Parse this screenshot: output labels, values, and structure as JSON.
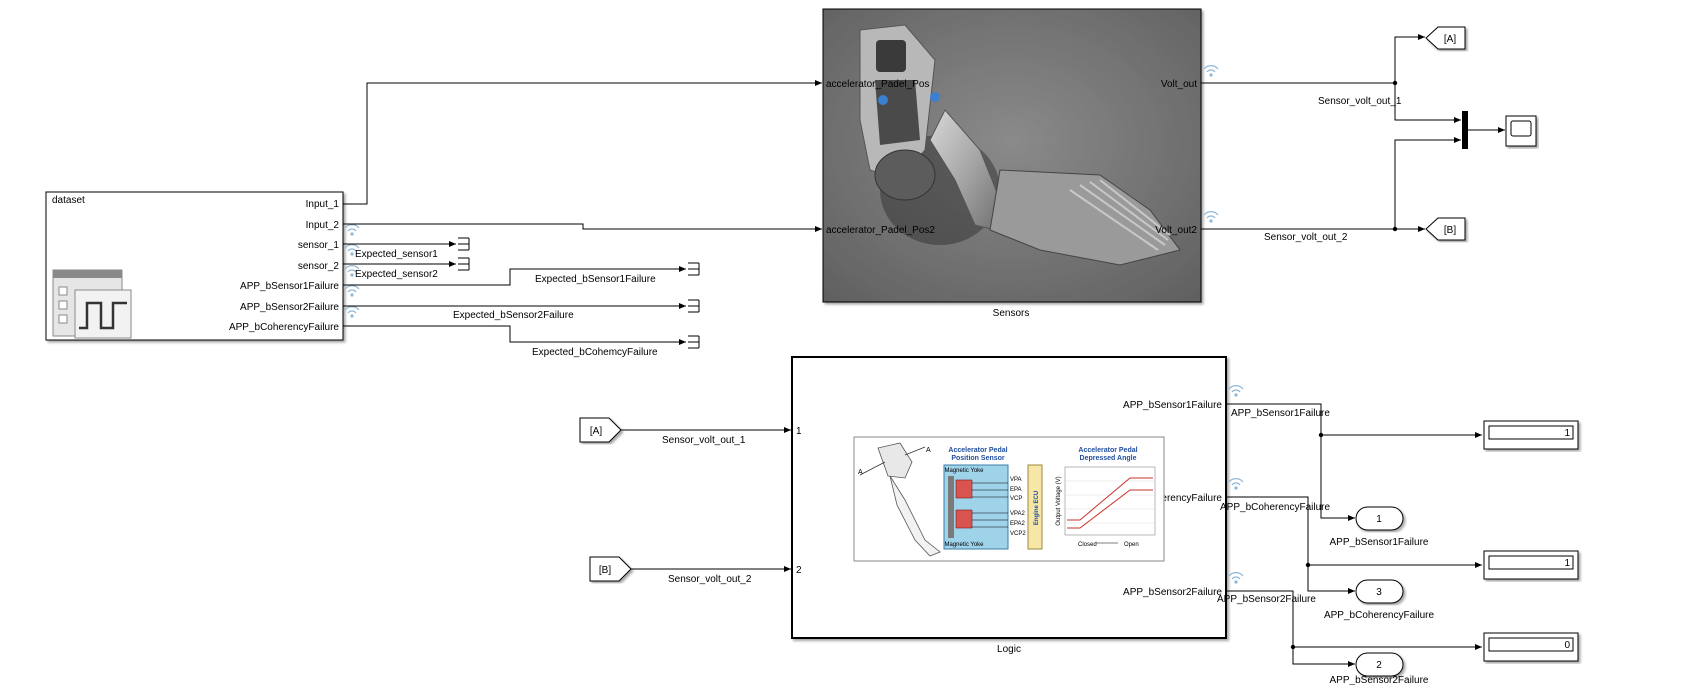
{
  "dataset": {
    "title": "dataset",
    "ports": [
      "Input_1",
      "Input_2",
      "sensor_1",
      "sensor_2",
      "APP_bSensor1Failure",
      "APP_bSensor2Failure",
      "APP_bCoherencyFailure"
    ]
  },
  "sensors": {
    "name": "Sensors",
    "in1": "accelerator_Padel_Pos",
    "in2": "accelerator_Padel_Pos2",
    "out1": "Volt_out",
    "out2": "Volt_out2"
  },
  "signals": {
    "expected_sensor1": "Expected_sensor1",
    "expected_sensor2": "Expected_sensor2",
    "expected_b1": "Expected_bSensor1Failure",
    "expected_b2": "Expected_bSensor2Failure",
    "expected_coh": "Expected_bCohemcyFailure",
    "sensor_volt_out_1": "Sensor_volt_out_1",
    "sensor_volt_out_2": "Sensor_volt_out_2",
    "sv1_logic": "Sensor_volt_out_1",
    "sv2_logic": "Sensor_volt_out_2",
    "app_b1": "APP_bSensor1Failure",
    "app_coh": "APP_bCoherencyFailure",
    "app_b2": "APP_bSensor2Failure"
  },
  "gotos": {
    "a": "[A]",
    "b": "[B]"
  },
  "froms": {
    "a": "[A]",
    "b": "[B]"
  },
  "logic": {
    "name": "Logic",
    "in1": "1",
    "in2": "2",
    "out1": "APP_bSensor1Failure",
    "out2": "APP_bCoherencyFailure",
    "out3": "APP_bSensor2Failure",
    "img_title1": "Accelerator Pedal",
    "img_title2": "Position Sensor",
    "img_graph1": "Accelerator Pedal",
    "img_graph2": "Depressed Angle",
    "img_ecu": "Engine ECU",
    "img_yoke": "Magnetic Yoke",
    "img_pins": [
      "VPA",
      "EPA",
      "VCP",
      "VPA2",
      "EPA2",
      "VCP2"
    ],
    "img_closed": "Closed",
    "img_open": "Open",
    "img_ylabel": "Output Voltage (V)"
  },
  "displays": [
    "1",
    "1",
    "0"
  ],
  "outports": [
    {
      "num": "1",
      "label": "APP_bSensor1Failure"
    },
    {
      "num": "3",
      "label": "APP_bCoherencyFailure"
    },
    {
      "num": "2",
      "label": "APP_bSensor2Failure"
    }
  ],
  "colors": {
    "wire": "#000000",
    "stream_icon": "#8fb8d8",
    "sensors_bg": "#6e6e6e"
  }
}
